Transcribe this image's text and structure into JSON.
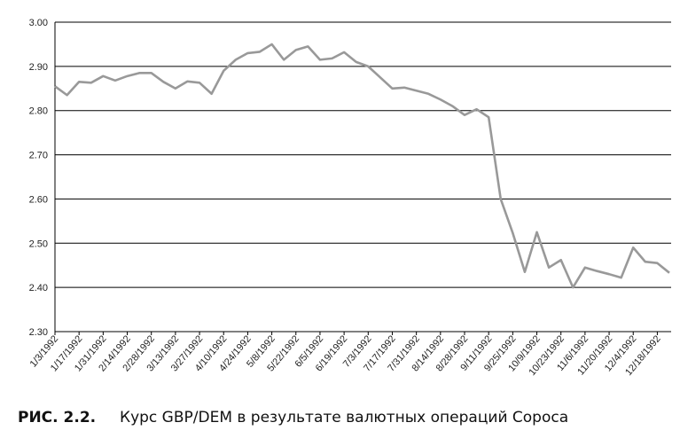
{
  "chart_data": {
    "type": "line",
    "caption_label": "РИС. 2.2.",
    "caption": "Курс GBP/DEM в результате валютных операций Сороса",
    "categories": [
      "1/3/1992",
      null,
      "1/17/1992",
      null,
      "1/31/1992",
      null,
      "2/14/1992",
      null,
      "2/28/1992",
      null,
      "3/13/1992",
      null,
      "3/27/1992",
      null,
      "4/10/1992",
      null,
      "4/24/1992",
      null,
      "5/8/1992",
      null,
      "5/22/1992",
      null,
      "6/5/1992",
      null,
      "6/19/1992",
      null,
      "7/3/1992",
      null,
      "7/17/1992",
      null,
      "7/31/1992",
      null,
      "8/14/1992",
      null,
      "8/28/1992",
      null,
      "9/11/1992",
      null,
      "9/25/1992",
      null,
      "10/9/1992",
      null,
      "10/23/1992",
      null,
      "11/6/1992",
      null,
      "11/20/1992",
      null,
      "12/4/1992",
      null,
      "12/18/1992",
      null
    ],
    "series": [
      {
        "color": "#999999",
        "values": [
          2.855,
          2.835,
          2.865,
          2.863,
          2.878,
          2.868,
          2.878,
          2.885,
          2.885,
          2.865,
          2.85,
          2.866,
          2.863,
          2.838,
          2.89,
          2.915,
          2.93,
          2.933,
          2.95,
          2.915,
          2.937,
          2.945,
          2.915,
          2.918,
          2.932,
          2.91,
          2.9,
          2.875,
          2.85,
          2.852,
          2.845,
          2.838,
          2.825,
          2.81,
          2.79,
          2.803,
          2.785,
          2.6,
          2.523,
          2.435,
          2.525,
          2.445,
          2.462,
          2.4,
          2.445,
          2.437,
          2.43,
          2.422,
          2.49,
          2.458,
          2.455,
          2.433
        ]
      }
    ],
    "ylim": [
      2.3,
      3.0
    ],
    "yticks": [
      {
        "value": 2.3,
        "label": "2.30"
      },
      {
        "value": 2.4,
        "label": "2.40"
      },
      {
        "value": 2.5,
        "label": "2.50"
      },
      {
        "value": 2.6,
        "label": "2.60"
      },
      {
        "value": 2.7,
        "label": "2.70"
      },
      {
        "value": 2.8,
        "label": "2.80"
      },
      {
        "value": 2.9,
        "label": "2.90"
      },
      {
        "value": 3.0,
        "label": "3.00"
      }
    ],
    "grid": true
  }
}
